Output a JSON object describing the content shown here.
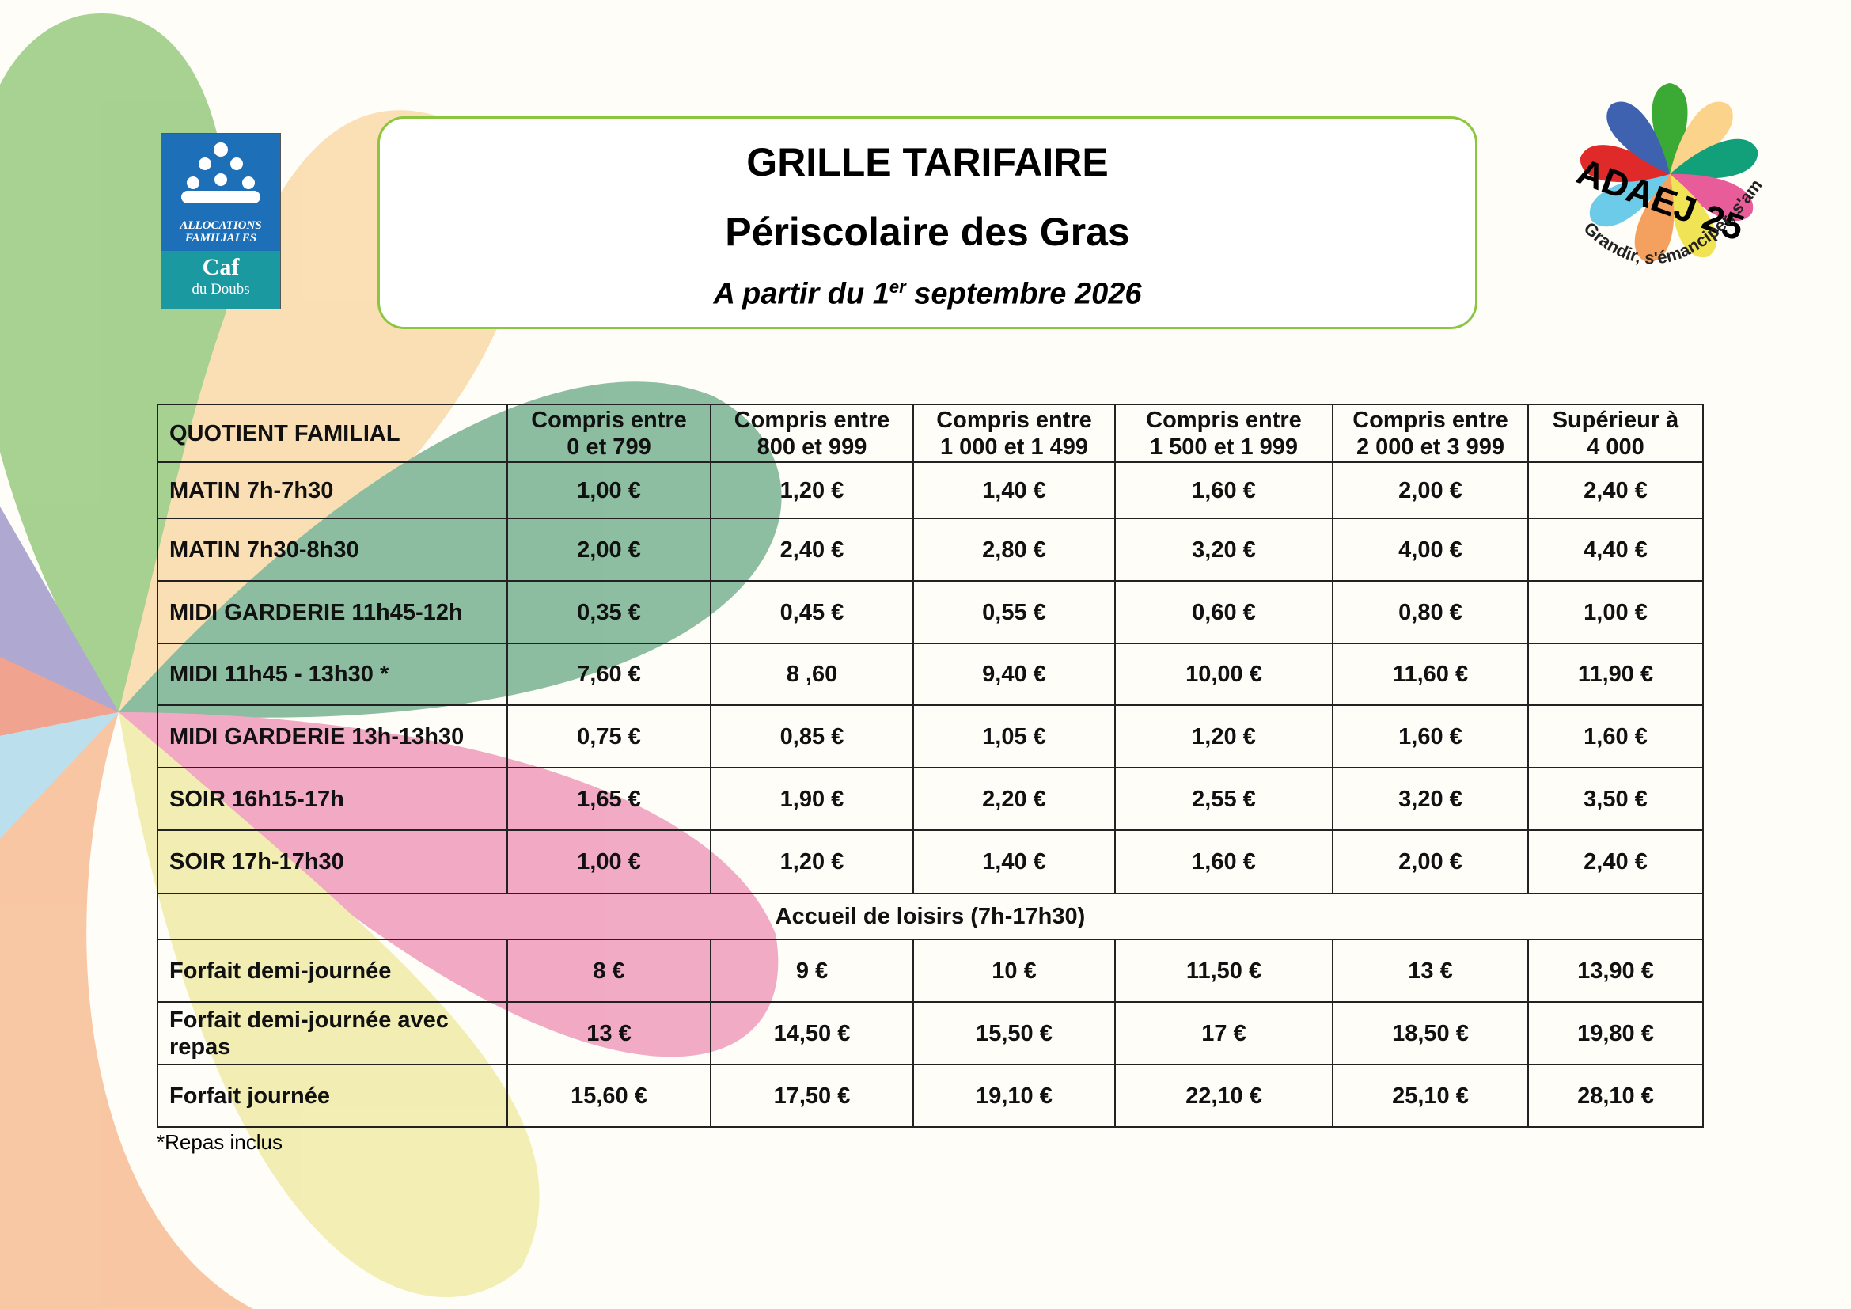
{
  "header": {
    "title": "GRILLE TARIFAIRE",
    "subtitle": "Périscolaire des Gras",
    "date": {
      "before": "A partir du 1",
      "sup": "er",
      "after": " septembre 2026"
    }
  },
  "caf_logo": {
    "line1": "ALLOCATIONS",
    "line2": "FAMILIALES",
    "name": "Caf",
    "region": "du Doubs"
  },
  "adaej_logo": {
    "name": "ADAEJ 25",
    "slogan": "Grandir, s'émanciper, s'amuser"
  },
  "table": {
    "header": [
      "QUOTIENT FAMILIAL",
      "Compris entre\n0 et 799",
      "Compris entre\n800 et 999",
      "Compris entre\n1 000 et 1 499",
      "Compris entre\n1 500 et 1 999",
      "Compris entre\n2 000 et 3 999",
      "Supérieur à\n4 000"
    ],
    "groups": [
      {
        "rows": [
          [
            "MATIN 7h-7h30",
            "1,00 €",
            "1,20 €",
            "1,40 €",
            "1,60 €",
            "2,00 €",
            "2,40 €"
          ],
          [
            "MATIN 7h30-8h30",
            "2,00 €",
            "2,40 €",
            "2,80 €",
            "3,20 €",
            "4,00 €",
            "4,40 €"
          ],
          [
            "MIDI GARDERIE 11h45-12h",
            "0,35 €",
            "0,45 €",
            "0,55 €",
            "0,60 €",
            "0,80 €",
            "1,00 €"
          ],
          [
            "MIDI 11h45 - 13h30 *",
            "7,60 €",
            "8 ,60",
            "9,40 €",
            "10,00 €",
            "11,60 €",
            "11,90 €"
          ],
          [
            "MIDI GARDERIE 13h-13h30",
            "0,75 €",
            "0,85 €",
            "1,05 €",
            "1,20 €",
            "1,60 €",
            "1,60 €"
          ],
          [
            "SOIR 16h15-17h",
            "1,65 €",
            "1,90 €",
            "2,20 €",
            "2,55 €",
            "3,20 €",
            "3,50 €"
          ],
          [
            "SOIR 17h-17h30",
            "1,00 €",
            "1,20 €",
            "1,40 €",
            "1,60 €",
            "2,00 €",
            "2,40 €"
          ]
        ]
      },
      {
        "title": "Accueil de loisirs (7h-17h30)",
        "rows": [
          [
            "Forfait demi-journée",
            "8 €",
            "9 €",
            "10 €",
            "11,50 €",
            "13 €",
            "13,90 €"
          ],
          [
            "Forfait demi-journée avec repas",
            "13 €",
            "14,50 €",
            "15,50 €",
            "17 €",
            "18,50 €",
            "19,80 €"
          ],
          [
            "Forfait journée",
            "15,60 €",
            "17,50 €",
            "19,10 €",
            "22,10 €",
            "25,10 €",
            "28,10 €"
          ]
        ]
      }
    ],
    "footnote": "*Repas inclus"
  }
}
